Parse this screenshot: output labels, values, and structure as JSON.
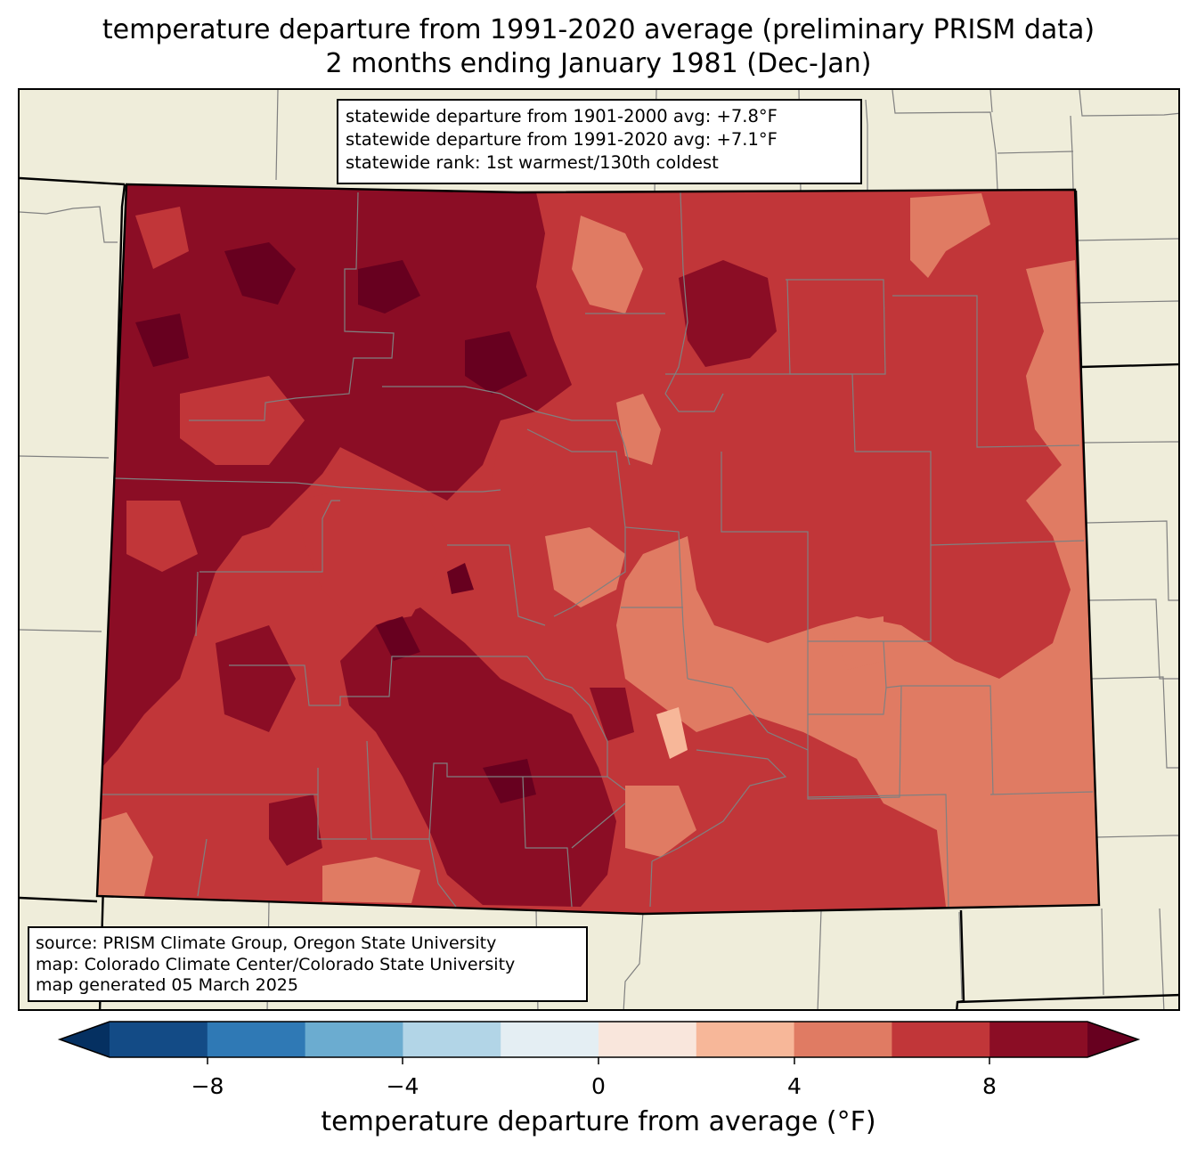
{
  "title": {
    "line1": "temperature departure from 1991-2020 average (preliminary PRISM data)",
    "line2": "2 months ending January 1981 (Dec-Jan)"
  },
  "stats": {
    "line1": "statewide departure from 1901-2000 avg: +7.8°F",
    "line2": "statewide departure from 1991-2020 avg: +7.1°F",
    "line3": "statewide rank: 1st warmest/130th coldest"
  },
  "source": {
    "line1": "source: PRISM Climate Group, Oregon State University",
    "line2": "map: Colorado Climate Center/Colorado State University",
    "line3": "map generated 05 March 2025"
  },
  "colorbar": {
    "label": "temperature departure from average (°F)",
    "ticks": [
      "−8",
      "−4",
      "0",
      "4",
      "8"
    ],
    "colors": [
      "#053061",
      "#134b86",
      "#2f79b5",
      "#6bacd0",
      "#b2d5e7",
      "#e4eef3",
      "#f9e6dc",
      "#f7b799",
      "#e07b63",
      "#c13639",
      "#8b0d25",
      "#67001f"
    ]
  },
  "map": {
    "background": "#efedda",
    "colors": {
      "level_2_4": "#f7b799",
      "level_4_6": "#e07b63",
      "level_6_8": "#c13639",
      "level_8_10": "#8b0d25",
      "level_above_10": "#67001f"
    }
  }
}
